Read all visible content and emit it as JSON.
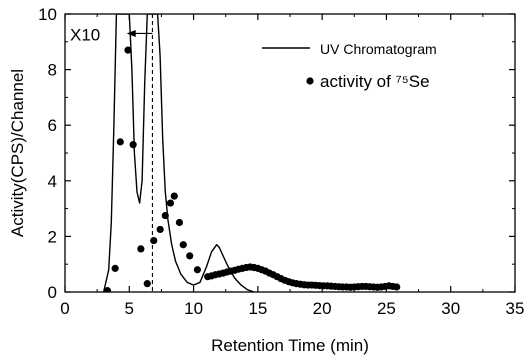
{
  "chart_data": {
    "type": "line",
    "xlabel": "Retention Time (min)",
    "ylabel": "Activity(CPS)/Channel",
    "xlim": [
      0,
      35
    ],
    "ylim": [
      0,
      10
    ],
    "x_ticks": [
      "0",
      "5",
      "10",
      "15",
      "20",
      "25",
      "30",
      "35"
    ],
    "y_ticks": [
      "0",
      "2",
      "4",
      "6",
      "8",
      "10"
    ],
    "grid": false,
    "legend_position": "top-right",
    "annotation": "X10",
    "annotation_arrow_from_x": 6.8,
    "annotation_arrow_to_x": 4.8,
    "annotation_y": 9.3,
    "dashed_line_x": 6.8,
    "series": [
      {
        "name": "UV Chromatogram",
        "type": "line",
        "x": [
          3.0,
          3.4,
          3.6,
          3.8,
          4.0,
          4.2,
          4.4,
          4.6,
          4.8,
          5.0,
          5.2,
          5.4,
          5.6,
          5.8,
          6.0,
          6.2,
          6.4,
          6.6,
          6.8,
          7.0,
          7.2,
          7.4,
          7.6,
          7.8,
          8.0,
          8.3,
          8.6,
          9.0,
          9.5,
          10.0,
          10.5,
          11.0,
          11.4,
          11.8,
          12.0,
          12.3,
          12.7,
          13.2,
          13.7,
          14.2,
          14.7
        ],
        "y": [
          0.0,
          0.8,
          2.5,
          6.0,
          10.0,
          10.0,
          10.0,
          10.0,
          10.0,
          10.0,
          8.0,
          5.0,
          3.6,
          3.2,
          4.0,
          7.5,
          10.0,
          10.0,
          10.0,
          10.0,
          10.0,
          8.5,
          5.5,
          3.6,
          2.6,
          1.7,
          1.1,
          0.65,
          0.35,
          0.25,
          0.35,
          0.9,
          1.45,
          1.7,
          1.6,
          1.3,
          0.9,
          0.5,
          0.25,
          0.08,
          0.0
        ]
      },
      {
        "name": "activity of ⁷⁵Se",
        "type": "scatter",
        "x": [
          3.3,
          3.9,
          4.3,
          4.9,
          5.3,
          5.9,
          6.4,
          6.9,
          7.4,
          7.8,
          8.2,
          8.5,
          8.9,
          9.2,
          9.7,
          10.3,
          11.1,
          11.4,
          11.7,
          12.0,
          12.3,
          12.6,
          12.9,
          13.2,
          13.5,
          13.8,
          14.1,
          14.4,
          14.7,
          15.0,
          15.3,
          15.6,
          15.9,
          16.2,
          16.5,
          16.8,
          17.1,
          17.4,
          17.7,
          18.0,
          18.3,
          18.6,
          18.9,
          19.2,
          19.5,
          19.8,
          20.1,
          20.4,
          20.7,
          21.0,
          21.3,
          21.6,
          21.9,
          22.2,
          22.5,
          22.8,
          23.1,
          23.4,
          23.7,
          24.0,
          24.3,
          24.6,
          24.9,
          25.2,
          25.5,
          25.8
        ],
        "y": [
          0.05,
          0.85,
          5.4,
          8.7,
          5.3,
          1.55,
          0.3,
          1.85,
          2.25,
          2.75,
          3.2,
          3.45,
          2.5,
          1.7,
          1.3,
          0.8,
          0.55,
          0.58,
          0.62,
          0.65,
          0.68,
          0.72,
          0.75,
          0.78,
          0.82,
          0.85,
          0.88,
          0.9,
          0.88,
          0.85,
          0.8,
          0.75,
          0.68,
          0.62,
          0.55,
          0.48,
          0.42,
          0.37,
          0.33,
          0.3,
          0.28,
          0.26,
          0.25,
          0.25,
          0.24,
          0.23,
          0.22,
          0.22,
          0.21,
          0.2,
          0.19,
          0.18,
          0.18,
          0.17,
          0.18,
          0.19,
          0.2,
          0.2,
          0.19,
          0.18,
          0.17,
          0.18,
          0.2,
          0.22,
          0.2,
          0.18
        ]
      }
    ]
  }
}
